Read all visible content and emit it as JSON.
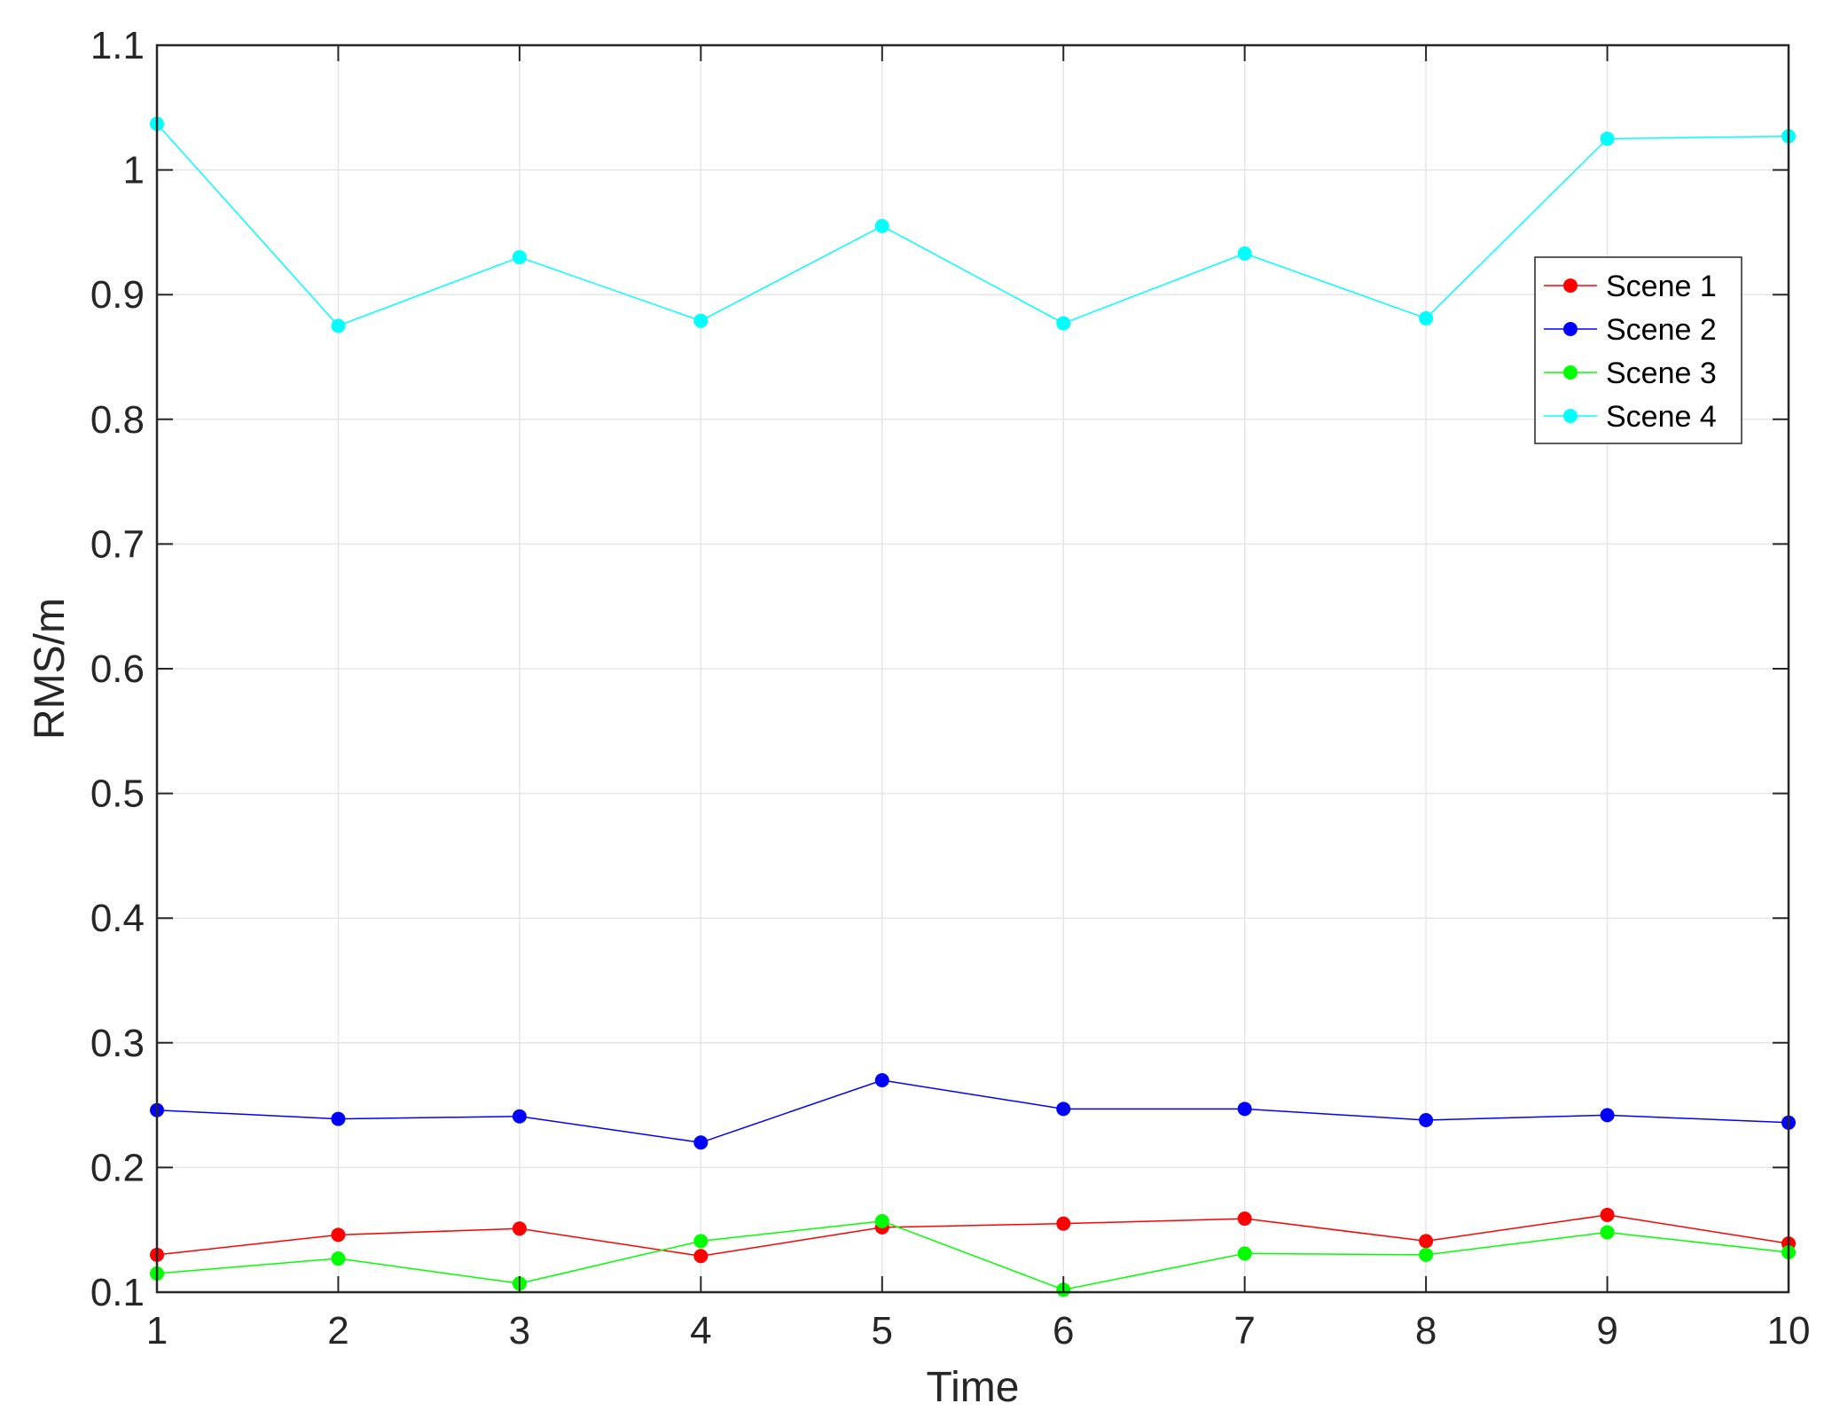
{
  "chart_data": {
    "type": "line",
    "xlabel": "Time",
    "ylabel": "RMS/m",
    "xlim": [
      1,
      10
    ],
    "ylim": [
      0.1,
      1.1
    ],
    "x": [
      1,
      2,
      3,
      4,
      5,
      6,
      7,
      8,
      9,
      10
    ],
    "xticks": [
      "1",
      "2",
      "3",
      "4",
      "5",
      "6",
      "7",
      "8",
      "9",
      "10"
    ],
    "yticks": [
      "0.1",
      "0.2",
      "0.3",
      "0.4",
      "0.5",
      "0.6",
      "0.7",
      "0.8",
      "0.9",
      "1",
      "1.1"
    ],
    "grid": true,
    "legend_position": "top-right",
    "series": [
      {
        "name": "Scene 1",
        "color": "#ff0000",
        "values": [
          0.13,
          0.146,
          0.151,
          0.129,
          0.152,
          0.155,
          0.159,
          0.141,
          0.162,
          0.139
        ]
      },
      {
        "name": "Scene 2",
        "color": "#0000ff",
        "values": [
          0.246,
          0.239,
          0.241,
          0.22,
          0.27,
          0.247,
          0.247,
          0.238,
          0.242,
          0.236
        ]
      },
      {
        "name": "Scene 3",
        "color": "#00ff00",
        "values": [
          0.115,
          0.127,
          0.107,
          0.141,
          0.157,
          0.102,
          0.131,
          0.13,
          0.148,
          0.132
        ]
      },
      {
        "name": "Scene 4",
        "color": "#00ffff",
        "values": [
          1.037,
          0.875,
          0.93,
          0.879,
          0.955,
          0.877,
          0.933,
          0.881,
          1.025,
          1.027
        ]
      }
    ]
  }
}
